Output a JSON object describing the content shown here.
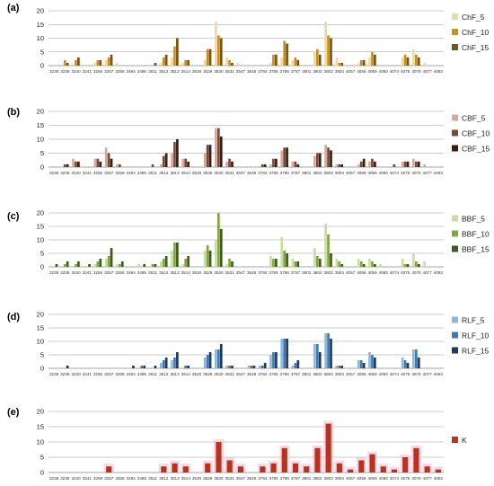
{
  "categories": [
    "3238",
    "3239",
    "3240",
    "3241",
    "3256",
    "3257",
    "3258",
    "3494",
    "3495",
    "3511",
    "3512",
    "3513",
    "3514",
    "3528",
    "3529",
    "3530",
    "3531",
    "3547",
    "3548",
    "3784",
    "3785",
    "3786",
    "3787",
    "3801",
    "3802",
    "3803",
    "3804",
    "4057",
    "4058",
    "4059",
    "4060",
    "4074",
    "4075",
    "4076",
    "4077",
    "4093"
  ],
  "chart_data": [
    {
      "type": "bar",
      "panel": "(a)",
      "ylim": [
        0,
        20
      ],
      "yticks": [
        0,
        5,
        10,
        15,
        20
      ],
      "grid": true,
      "legend_position": "right",
      "series": [
        {
          "name": "ChF_5",
          "color": "#f2d7a3",
          "values": [
            0,
            0,
            0,
            0,
            1,
            2,
            1,
            0,
            0,
            0,
            1,
            3,
            1,
            0,
            2,
            16,
            3,
            1,
            0,
            0,
            1,
            3,
            2,
            0,
            5,
            16,
            3,
            0,
            1,
            3,
            0,
            0,
            3,
            6,
            1,
            0
          ]
        },
        {
          "name": "ChF_10",
          "color": "#c8901e",
          "values": [
            0,
            2,
            2,
            0,
            2,
            3,
            0,
            0,
            0,
            0,
            3,
            7,
            2,
            0,
            6,
            11,
            2,
            0,
            0,
            0,
            4,
            9,
            3,
            0,
            6,
            11,
            1,
            0,
            2,
            5,
            0,
            0,
            4,
            4,
            0,
            0
          ]
        },
        {
          "name": "ChF_15",
          "color": "#7a5510",
          "values": [
            0,
            1,
            3,
            0,
            2,
            4,
            0,
            0,
            0,
            1,
            4,
            10,
            2,
            0,
            6,
            10,
            1,
            0,
            0,
            0,
            4,
            8,
            2,
            0,
            4,
            10,
            1,
            0,
            2,
            4,
            0,
            0,
            3,
            3,
            0,
            0
          ]
        }
      ]
    },
    {
      "type": "bar",
      "panel": "(b)",
      "ylim": [
        0,
        20
      ],
      "yticks": [
        0,
        5,
        10,
        15,
        20
      ],
      "grid": true,
      "legend_position": "right",
      "series": [
        {
          "name": "CBF_5",
          "color": "#d8a896",
          "values": [
            0,
            0,
            3,
            0,
            3,
            7,
            1,
            0,
            0,
            0,
            1,
            5,
            3,
            0,
            5,
            14,
            2,
            0,
            0,
            0,
            1,
            6,
            2,
            0,
            4,
            8,
            1,
            0,
            1,
            2,
            0,
            0,
            2,
            3,
            1,
            0
          ]
        },
        {
          "name": "CBF_10",
          "color": "#7a4838",
          "values": [
            0,
            1,
            2,
            0,
            3,
            5,
            1,
            0,
            0,
            1,
            4,
            9,
            3,
            0,
            8,
            14,
            3,
            0,
            0,
            1,
            3,
            7,
            2,
            0,
            5,
            7,
            1,
            0,
            2,
            3,
            0,
            1,
            2,
            2,
            0,
            0
          ]
        },
        {
          "name": "CBF_15",
          "color": "#3a1e12",
          "values": [
            0,
            1,
            2,
            0,
            2,
            3,
            0,
            0,
            0,
            0,
            5,
            10,
            2,
            0,
            8,
            11,
            2,
            0,
            0,
            1,
            3,
            7,
            1,
            0,
            5,
            6,
            1,
            0,
            3,
            2,
            0,
            0,
            2,
            2,
            0,
            0
          ]
        }
      ]
    },
    {
      "type": "bar",
      "panel": "(c)",
      "ylim": [
        0,
        20
      ],
      "yticks": [
        0,
        5,
        10,
        15,
        20
      ],
      "grid": true,
      "legend_position": "right",
      "series": [
        {
          "name": "BBF_5",
          "color": "#c6dfa0",
          "values": [
            0,
            0,
            0,
            0,
            1,
            3,
            1,
            0,
            1,
            0,
            2,
            6,
            1,
            0,
            6,
            10,
            1,
            0,
            0,
            0,
            4,
            11,
            3,
            0,
            7,
            16,
            3,
            0,
            3,
            3,
            1,
            0,
            3,
            5,
            2,
            0
          ]
        },
        {
          "name": "BBF_10",
          "color": "#7fa83c",
          "values": [
            0,
            1,
            1,
            0,
            2,
            4,
            1,
            0,
            0,
            1,
            3,
            9,
            3,
            0,
            8,
            20,
            3,
            0,
            0,
            0,
            3,
            6,
            2,
            0,
            4,
            12,
            2,
            0,
            2,
            2,
            0,
            0,
            1,
            2,
            0,
            0
          ]
        },
        {
          "name": "BBF_15",
          "color": "#3d5c1a",
          "values": [
            1,
            2,
            2,
            1,
            3,
            7,
            2,
            0,
            1,
            1,
            4,
            9,
            4,
            0,
            6,
            14,
            2,
            0,
            0,
            0,
            3,
            5,
            2,
            0,
            3,
            5,
            1,
            0,
            1,
            1,
            0,
            0,
            1,
            1,
            0,
            0
          ]
        }
      ]
    },
    {
      "type": "bar",
      "panel": "(d)",
      "ylim": [
        0,
        20
      ],
      "yticks": [
        0,
        5,
        10,
        15,
        20
      ],
      "grid": true,
      "legend_position": "right",
      "series": [
        {
          "name": "RLF_5",
          "color": "#8ab8e0",
          "values": [
            0,
            0,
            0,
            0,
            0,
            0,
            0,
            0,
            0,
            0,
            2,
            3,
            0,
            0,
            4,
            7,
            1,
            0,
            1,
            1,
            5,
            11,
            1,
            0,
            9,
            13,
            1,
            0,
            3,
            6,
            0,
            0,
            4,
            7,
            0,
            0
          ]
        },
        {
          "name": "RLF_10",
          "color": "#3f7ab0",
          "values": [
            0,
            0,
            0,
            0,
            0,
            0,
            0,
            0,
            1,
            0,
            3,
            4,
            1,
            0,
            5,
            7,
            1,
            0,
            1,
            1,
            6,
            11,
            2,
            0,
            9,
            13,
            1,
            0,
            3,
            5,
            0,
            0,
            3,
            7,
            0,
            0
          ]
        },
        {
          "name": "RLF_15",
          "color": "#1d3a66",
          "values": [
            0,
            1,
            0,
            0,
            0,
            0,
            0,
            1,
            1,
            1,
            4,
            6,
            1,
            0,
            6,
            9,
            1,
            0,
            1,
            2,
            6,
            11,
            3,
            0,
            6,
            11,
            1,
            0,
            2,
            4,
            0,
            0,
            2,
            4,
            0,
            0
          ]
        }
      ]
    },
    {
      "type": "bar",
      "panel": "(e)",
      "ylim": [
        0,
        20
      ],
      "yticks": [
        0,
        5,
        10,
        15,
        20
      ],
      "grid": true,
      "legend_position": "right",
      "highlight_color": "#f4b8cf",
      "series": [
        {
          "name": "K",
          "color": "#b8321e",
          "values": [
            0,
            0,
            0,
            0,
            0,
            2,
            0,
            0,
            0,
            0,
            2,
            3,
            2,
            0,
            3,
            10,
            4,
            2,
            0,
            2,
            3,
            8,
            3,
            2,
            8,
            16,
            3,
            1,
            4,
            6,
            2,
            1,
            5,
            8,
            2,
            1
          ]
        }
      ]
    }
  ]
}
